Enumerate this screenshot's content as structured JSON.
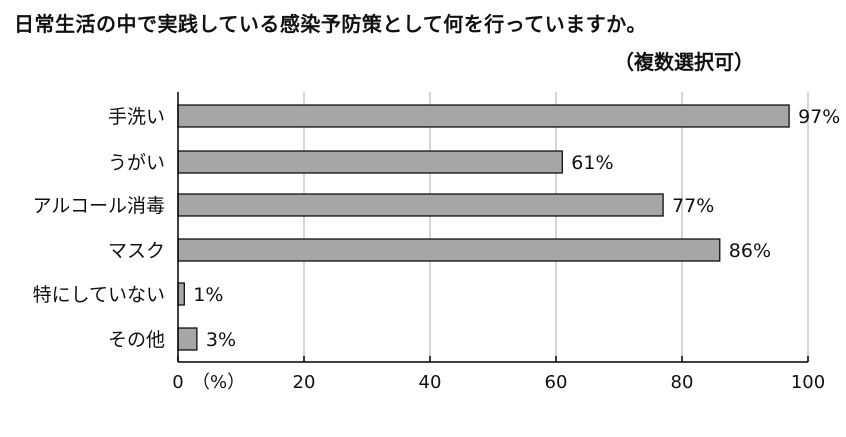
{
  "chart_data": {
    "type": "bar",
    "orientation": "horizontal",
    "title": "日常生活の中で実践している感染予防策として何を行っていますか。",
    "subtitle": "（複数選択可）",
    "categories": [
      "手洗い",
      "うがい",
      "アルコール消毒",
      "マスク",
      "特にしていない",
      "その他"
    ],
    "values": [
      97,
      61,
      77,
      86,
      1,
      3
    ],
    "value_labels": [
      "97%",
      "61%",
      "77%",
      "86%",
      "1%",
      "3%"
    ],
    "x_ticks": [
      "0",
      "20",
      "40",
      "60",
      "80",
      "100"
    ],
    "x_unit_label": "（%）",
    "xlim": [
      0,
      100
    ],
    "grid": true,
    "bar_color": "#a6a6a6",
    "bar_edge_color": "#000000",
    "grid_color": "#c8c8c8"
  }
}
